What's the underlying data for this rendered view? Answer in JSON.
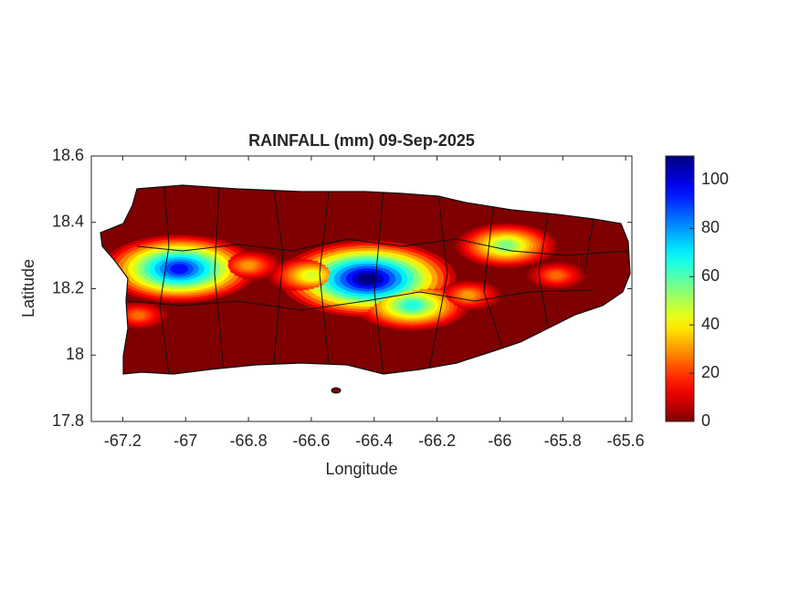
{
  "chart_data": {
    "type": "map",
    "title": "RAINFALL (mm) 09-Sep-2025",
    "xlabel": "Longitude",
    "ylabel": "Latitude",
    "xlim": [
      -67.3,
      -65.58
    ],
    "xticks": [
      -67.2,
      -67,
      -66.8,
      -66.6,
      -66.4,
      -66.2,
      -66,
      -65.8,
      -65.6
    ],
    "ylim": [
      17.8,
      18.6
    ],
    "yticks": [
      17.8,
      18,
      18.2,
      18.4,
      18.6
    ],
    "clim": [
      0,
      110
    ],
    "cticks": [
      0,
      20,
      40,
      60,
      80,
      100
    ],
    "land_color": "#7f0000",
    "hotspots": [
      {
        "lon": -66.42,
        "lat": 18.23,
        "value": 110
      },
      {
        "lon": -67.02,
        "lat": 18.26,
        "value": 95
      },
      {
        "lon": -66.28,
        "lat": 18.15,
        "value": 65
      },
      {
        "lon": -65.98,
        "lat": 18.33,
        "value": 55
      },
      {
        "lon": -66.6,
        "lat": 18.24,
        "value": 45
      },
      {
        "lon": -66.8,
        "lat": 18.27,
        "value": 30
      },
      {
        "lon": -65.82,
        "lat": 18.24,
        "value": 25
      },
      {
        "lon": -67.15,
        "lat": 18.12,
        "value": 25
      },
      {
        "lon": -66.1,
        "lat": 18.18,
        "value": 30
      }
    ]
  }
}
